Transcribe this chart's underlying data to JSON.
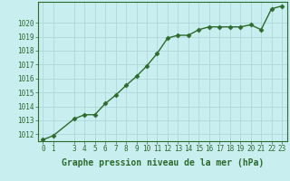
{
  "x": [
    0,
    1,
    3,
    4,
    5,
    6,
    7,
    8,
    9,
    10,
    11,
    12,
    13,
    14,
    15,
    16,
    17,
    18,
    19,
    20,
    21,
    22,
    23
  ],
  "y": [
    1011.6,
    1011.9,
    1013.1,
    1013.4,
    1013.4,
    1014.2,
    1014.8,
    1015.5,
    1016.15,
    1016.9,
    1017.8,
    1018.9,
    1019.1,
    1019.1,
    1019.5,
    1019.7,
    1019.7,
    1019.7,
    1019.7,
    1019.85,
    1019.5,
    1021.0,
    1021.2
  ],
  "line_color": "#2d6a2d",
  "marker": "D",
  "marker_size": 2.5,
  "bg_color": "#c8eef0",
  "grid_color": "#b0d8d8",
  "xlabel": "Graphe pression niveau de la mer (hPa)",
  "xlim": [
    -0.5,
    23.5
  ],
  "ylim": [
    1011.5,
    1021.5
  ],
  "yticks": [
    1012,
    1013,
    1014,
    1015,
    1016,
    1017,
    1018,
    1019,
    1020
  ],
  "xticks": [
    0,
    1,
    3,
    4,
    5,
    6,
    7,
    8,
    9,
    10,
    11,
    12,
    13,
    14,
    15,
    16,
    17,
    18,
    19,
    20,
    21,
    22,
    23
  ],
  "tick_color": "#2d6a2d",
  "label_color": "#2d6a2d",
  "xlabel_fontsize": 7,
  "tick_fontsize": 5.5,
  "linewidth": 1.0
}
